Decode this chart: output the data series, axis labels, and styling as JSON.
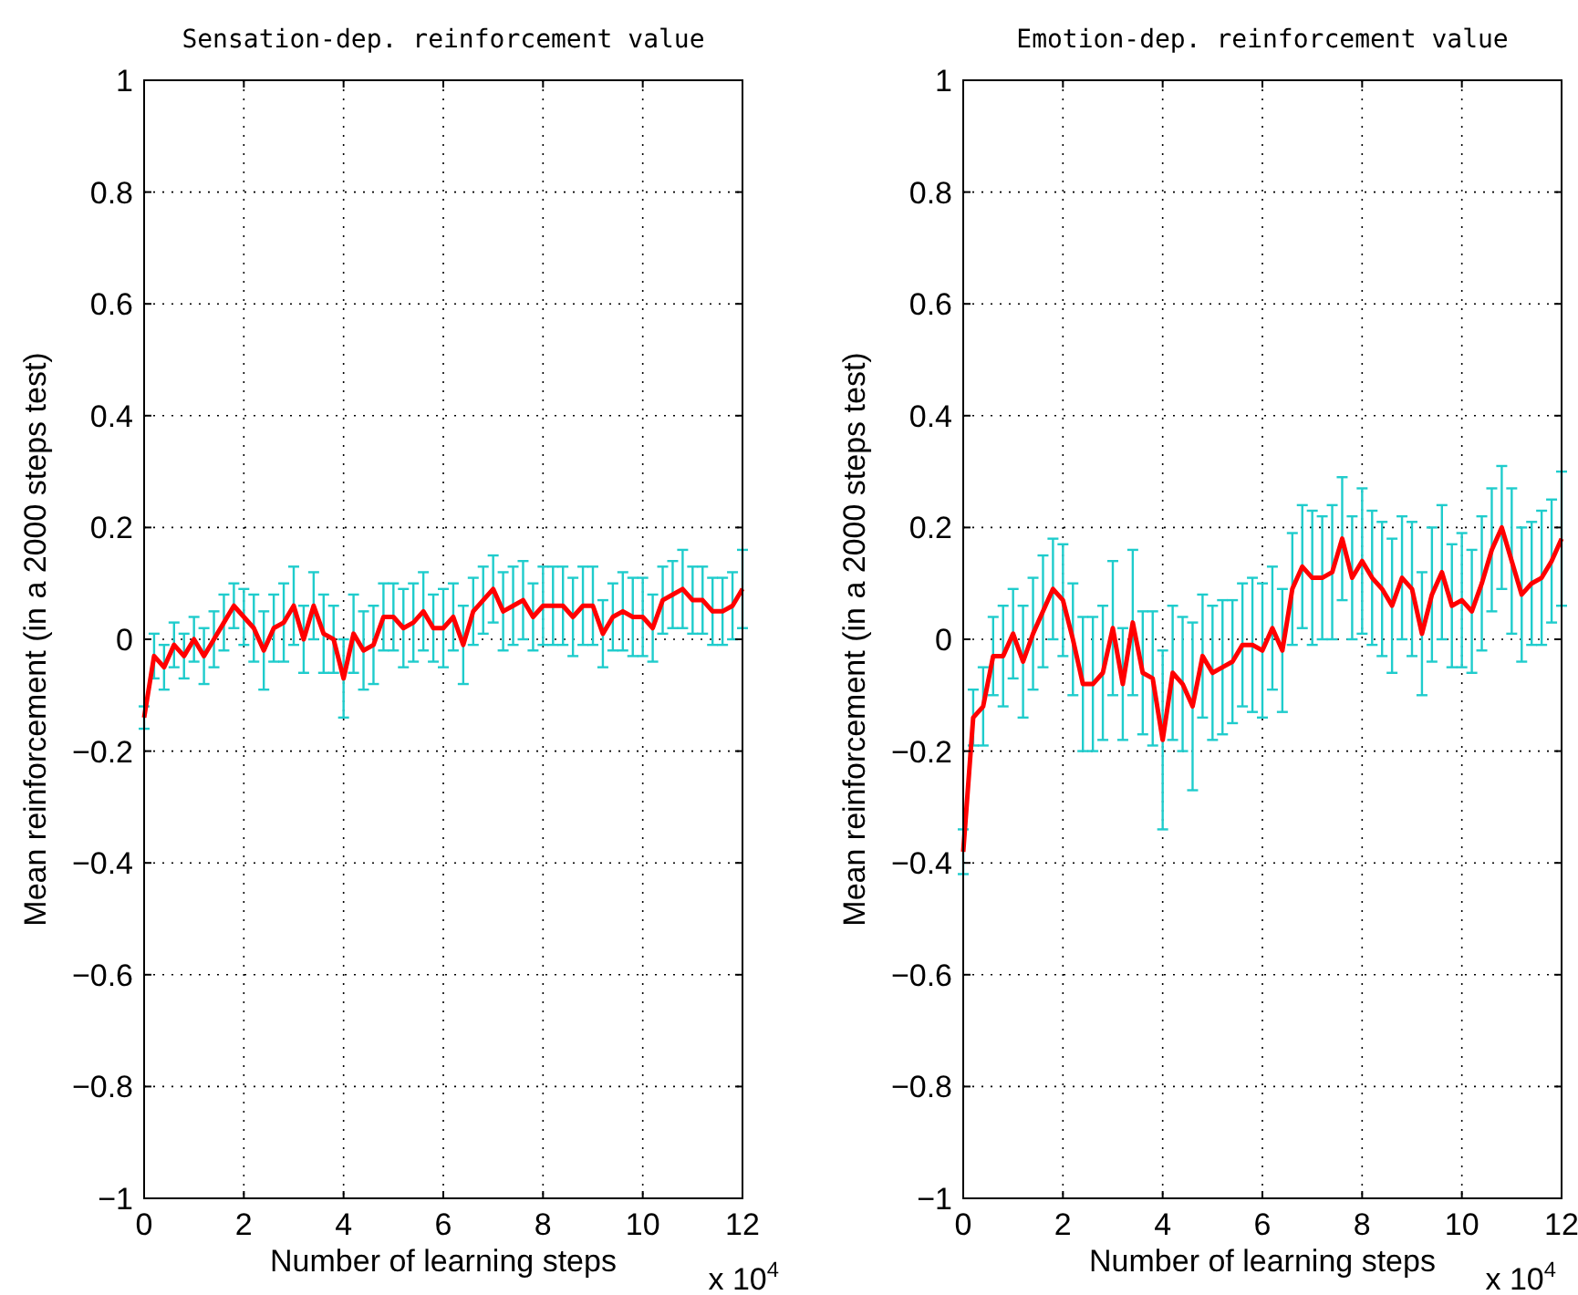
{
  "chart_data": [
    {
      "type": "line",
      "title": "Sensation-dep. reinforcement value",
      "xlabel": "Number of learning steps",
      "ylabel": "Mean reinforcement (in a 2000 steps test)",
      "annotations": [
        "x 10$^{4}$"
      ],
      "xlim": [
        0,
        12
      ],
      "xticks": [
        0,
        2,
        4,
        6,
        8,
        10,
        12
      ],
      "ylim": [
        -1,
        1
      ],
      "yticks": [
        {
          "value": -1,
          "label": "−1"
        },
        {
          "value": -0.8,
          "label": "−0.8"
        },
        {
          "value": -0.6,
          "label": "−0.6"
        },
        {
          "value": -0.4,
          "label": "−0.4"
        },
        {
          "value": -0.2,
          "label": "−0.2"
        },
        0,
        0.2,
        0.4,
        0.6,
        0.8,
        1
      ],
      "grid": true,
      "marker": "none",
      "line_style": "solid",
      "x": [
        0,
        0.2,
        0.4,
        0.6,
        0.8,
        1,
        1.2,
        1.4,
        1.6,
        1.8,
        2,
        2.2,
        2.4,
        2.6,
        2.8,
        3,
        3.2,
        3.4,
        3.6,
        3.8,
        4,
        4.2,
        4.4,
        4.6,
        4.8,
        5,
        5.2,
        5.4,
        5.6,
        5.8,
        6,
        6.2,
        6.4,
        6.6,
        6.8,
        7,
        7.2,
        7.4,
        7.6,
        7.8,
        8,
        8.2,
        8.4,
        8.6,
        8.8,
        9,
        9.2,
        9.4,
        9.6,
        9.8,
        10,
        10.2,
        10.4,
        10.6,
        10.8,
        11,
        11.2,
        11.4,
        11.6,
        11.8,
        12
      ],
      "series": [
        {
          "color": "#ff0000",
          "values": [
            -0.14,
            -0.03,
            -0.05,
            -0.01,
            -0.03,
            0,
            -0.03,
            0,
            0.03,
            0.06,
            0.04,
            0.02,
            -0.02,
            0.02,
            0.03,
            0.06,
            0,
            0.06,
            0.01,
            0,
            -0.07,
            0.01,
            -0.02,
            -0.01,
            0.04,
            0.04,
            0.02,
            0.03,
            0.05,
            0.02,
            0.02,
            0.04,
            -0.01,
            0.05,
            0.07,
            0.09,
            0.05,
            0.06,
            0.07,
            0.04,
            0.06,
            0.06,
            0.06,
            0.04,
            0.06,
            0.06,
            0.01,
            0.04,
            0.05,
            0.04,
            0.04,
            0.02,
            0.07,
            0.08,
            0.09,
            0.07,
            0.07,
            0.05,
            0.05,
            0.06,
            0.09
          ],
          "errors": [
            0.02,
            0.04,
            0.04,
            0.04,
            0.04,
            0.04,
            0.05,
            0.05,
            0.05,
            0.04,
            0.05,
            0.06,
            0.07,
            0.06,
            0.07,
            0.07,
            0.06,
            0.06,
            0.07,
            0.06,
            0.07,
            0.07,
            0.07,
            0.07,
            0.06,
            0.06,
            0.07,
            0.07,
            0.07,
            0.06,
            0.07,
            0.06,
            0.07,
            0.06,
            0.06,
            0.06,
            0.07,
            0.07,
            0.07,
            0.06,
            0.07,
            0.07,
            0.07,
            0.07,
            0.07,
            0.07,
            0.06,
            0.06,
            0.07,
            0.07,
            0.07,
            0.06,
            0.06,
            0.06,
            0.07,
            0.06,
            0.06,
            0.06,
            0.06,
            0.06,
            0.07
          ]
        }
      ]
    },
    {
      "type": "line",
      "title": "Emotion-dep. reinforcement value",
      "xlabel": "Number of learning steps",
      "ylabel": "Mean reinforcement (in a 2000 steps test)",
      "annotations": [
        "x 10$^{4}$"
      ],
      "xlim": [
        0,
        12
      ],
      "xticks": [
        0,
        2,
        4,
        6,
        8,
        10,
        12
      ],
      "ylim": [
        -1,
        1
      ],
      "yticks": [
        {
          "value": -1,
          "label": "−1"
        },
        {
          "value": -0.8,
          "label": "−0.8"
        },
        {
          "value": -0.6,
          "label": "−0.6"
        },
        {
          "value": -0.4,
          "label": "−0.4"
        },
        {
          "value": -0.2,
          "label": "−0.2"
        },
        0,
        0.2,
        0.4,
        0.6,
        0.8,
        1
      ],
      "grid": true,
      "marker": "none",
      "line_style": "solid",
      "x": [
        0,
        0.2,
        0.4,
        0.6,
        0.8,
        1,
        1.2,
        1.4,
        1.6,
        1.8,
        2,
        2.2,
        2.4,
        2.6,
        2.8,
        3,
        3.2,
        3.4,
        3.6,
        3.8,
        4,
        4.2,
        4.4,
        4.6,
        4.8,
        5,
        5.2,
        5.4,
        5.6,
        5.8,
        6,
        6.2,
        6.4,
        6.6,
        6.8,
        7,
        7.2,
        7.4,
        7.6,
        7.8,
        8,
        8.2,
        8.4,
        8.6,
        8.8,
        9,
        9.2,
        9.4,
        9.6,
        9.8,
        10,
        10.2,
        10.4,
        10.6,
        10.8,
        11,
        11.2,
        11.4,
        11.6,
        11.8,
        12
      ],
      "series": [
        {
          "color": "#ff0000",
          "values": [
            -0.38,
            -0.14,
            -0.12,
            -0.03,
            -0.03,
            0.01,
            -0.04,
            0.01,
            0.05,
            0.09,
            0.07,
            0,
            -0.08,
            -0.08,
            -0.06,
            0.02,
            -0.08,
            0.03,
            -0.06,
            -0.07,
            -0.18,
            -0.06,
            -0.08,
            -0.12,
            -0.03,
            -0.06,
            -0.05,
            -0.04,
            -0.01,
            -0.01,
            -0.02,
            0.02,
            -0.02,
            0.09,
            0.13,
            0.11,
            0.11,
            0.12,
            0.18,
            0.11,
            0.14,
            0.11,
            0.09,
            0.06,
            0.11,
            0.09,
            0.01,
            0.08,
            0.12,
            0.06,
            0.07,
            0.05,
            0.1,
            0.16,
            0.2,
            0.14,
            0.08,
            0.1,
            0.11,
            0.14,
            0.18
          ],
          "errors": [
            0.04,
            0.05,
            0.07,
            0.07,
            0.09,
            0.08,
            0.1,
            0.1,
            0.1,
            0.09,
            0.1,
            0.1,
            0.12,
            0.12,
            0.12,
            0.12,
            0.1,
            0.13,
            0.11,
            0.12,
            0.16,
            0.12,
            0.12,
            0.15,
            0.11,
            0.12,
            0.12,
            0.11,
            0.11,
            0.12,
            0.12,
            0.11,
            0.11,
            0.1,
            0.11,
            0.12,
            0.11,
            0.12,
            0.11,
            0.11,
            0.13,
            0.12,
            0.12,
            0.12,
            0.11,
            0.12,
            0.11,
            0.12,
            0.12,
            0.11,
            0.12,
            0.11,
            0.12,
            0.11,
            0.11,
            0.13,
            0.12,
            0.11,
            0.12,
            0.11,
            0.12
          ]
        }
      ]
    }
  ]
}
